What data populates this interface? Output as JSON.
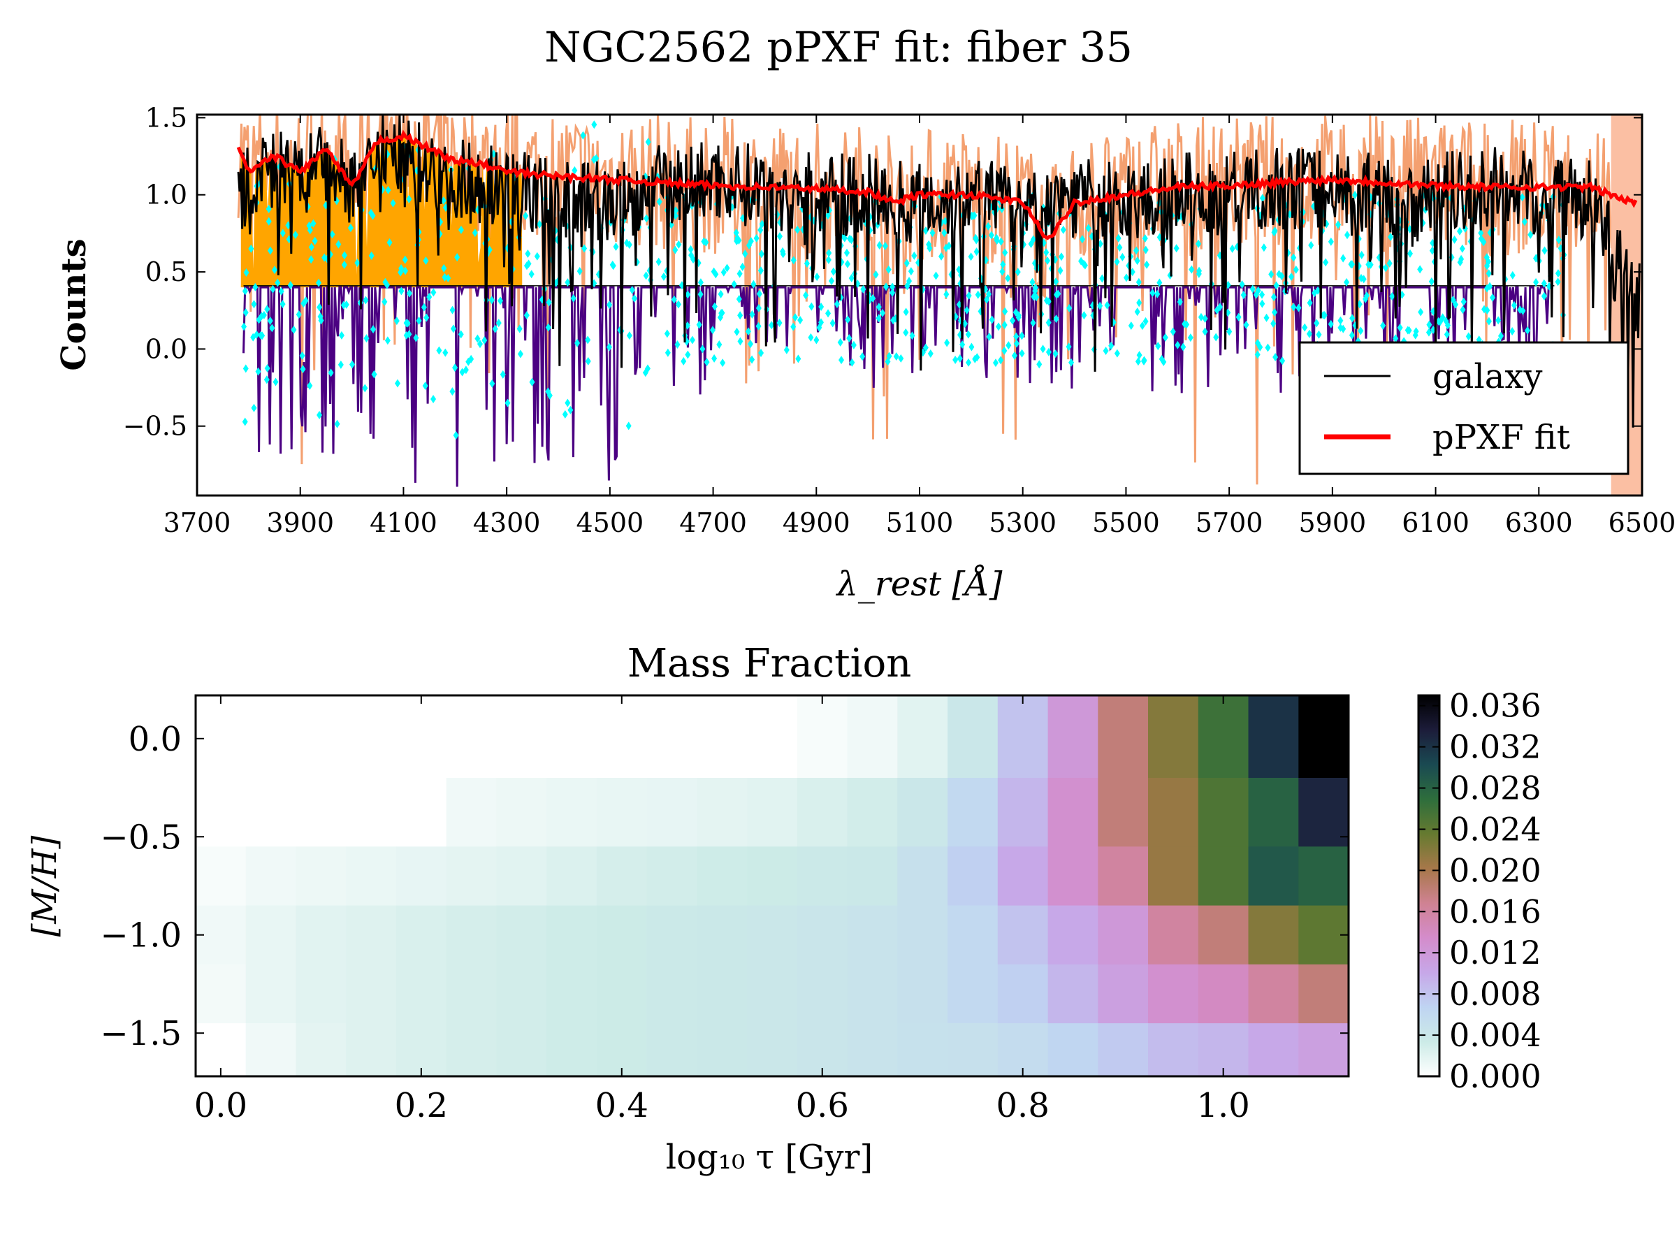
{
  "figure": {
    "title": "NGC2562 pPXF fit: fiber 35"
  },
  "chart_data": [
    {
      "type": "line",
      "xlabel": "λ_rest [Å]",
      "ylabel": "Counts",
      "xlim": [
        3700,
        6500
      ],
      "ylim": [
        -0.95,
        1.52
      ],
      "x_ticks": [
        {
          "label": "3700",
          "value": 3700
        },
        {
          "label": "3900",
          "value": 3900
        },
        {
          "label": "4100",
          "value": 4100
        },
        {
          "label": "4300",
          "value": 4300
        },
        {
          "label": "4500",
          "value": 4500
        },
        {
          "label": "4700",
          "value": 4700
        },
        {
          "label": "4900",
          "value": 4900
        },
        {
          "label": "5100",
          "value": 5100
        },
        {
          "label": "5300",
          "value": 5300
        },
        {
          "label": "5500",
          "value": 5500
        },
        {
          "label": "5700",
          "value": 5700
        },
        {
          "label": "5900",
          "value": 5900
        },
        {
          "label": "6100",
          "value": 6100
        },
        {
          "label": "6300",
          "value": 6300
        },
        {
          "label": "6500",
          "value": 6500
        }
      ],
      "y_ticks": [
        {
          "label": "−0.5",
          "value": -0.5
        },
        {
          "label": "0.0",
          "value": 0.0
        },
        {
          "label": "0.5",
          "value": 0.5
        },
        {
          "label": "1.0",
          "value": 1.0
        },
        {
          "label": "1.5",
          "value": 1.5
        }
      ],
      "legend": {
        "placement": "lower-right",
        "entries": [
          "galaxy",
          "pPXF fit"
        ]
      },
      "series": [
        {
          "name": "galaxy",
          "color": "#000000",
          "x": [
            3780,
            3800,
            3850,
            3900,
            3950,
            4000,
            4050,
            4100,
            4150,
            4200,
            4300,
            4400,
            4500,
            4600,
            4700,
            4800,
            4900,
            5000,
            5100,
            5200,
            5300,
            5400,
            5500,
            5600,
            5700,
            5800,
            5900,
            6000,
            6100,
            6200,
            6300,
            6400,
            6480
          ],
          "y": [
            1.0,
            1.1,
            1.15,
            1.1,
            1.2,
            1.05,
            1.3,
            1.25,
            1.2,
            1.1,
            1.05,
            1.0,
            0.95,
            1.05,
            1.1,
            1.05,
            1.0,
            1.0,
            0.95,
            1.0,
            0.9,
            1.0,
            0.95,
            1.0,
            1.0,
            1.05,
            1.05,
            1.0,
            1.0,
            1.05,
            1.0,
            1.0,
            0.3
          ]
        },
        {
          "name": "pPXF fit",
          "color": "#ff0000",
          "x": [
            3780,
            3800,
            3850,
            3900,
            3950,
            4000,
            4050,
            4100,
            4150,
            4200,
            4250,
            4300,
            4400,
            4500,
            4600,
            4700,
            4800,
            4900,
            5000,
            5050,
            5100,
            5200,
            5300,
            5350,
            5400,
            5500,
            5600,
            5700,
            5800,
            5900,
            6000,
            6100,
            6200,
            6300,
            6400,
            6480
          ],
          "y": [
            1.3,
            1.15,
            1.25,
            1.15,
            1.3,
            1.05,
            1.35,
            1.38,
            1.3,
            1.22,
            1.2,
            1.15,
            1.12,
            1.1,
            1.08,
            1.06,
            1.05,
            1.04,
            1.02,
            0.95,
            1.0,
            1.0,
            0.95,
            0.7,
            0.95,
            1.0,
            1.05,
            1.06,
            1.08,
            1.1,
            1.08,
            1.06,
            1.05,
            1.05,
            1.05,
            0.95
          ]
        }
      ]
    },
    {
      "type": "heatmap",
      "title": "Mass Fraction",
      "xlabel": "log₁₀ τ [Gyr]",
      "ylabel": "[M/H]",
      "x_values": [
        0.0,
        0.05,
        0.1,
        0.15,
        0.2,
        0.25,
        0.3,
        0.35,
        0.4,
        0.45,
        0.5,
        0.55,
        0.6,
        0.65,
        0.7,
        0.75,
        0.8,
        0.85,
        0.9,
        0.95,
        1.0,
        1.05,
        1.1
      ],
      "y_values": [
        0.0,
        -0.4,
        -0.7,
        -1.0,
        -1.3,
        -1.6
      ],
      "xlim": [
        -0.025,
        1.125
      ],
      "ylim": [
        -1.72,
        0.22
      ],
      "x_ticks": [
        {
          "label": "0.0",
          "value": 0.0
        },
        {
          "label": "0.2",
          "value": 0.2
        },
        {
          "label": "0.4",
          "value": 0.4
        },
        {
          "label": "0.6",
          "value": 0.6
        },
        {
          "label": "0.8",
          "value": 0.8
        },
        {
          "label": "1.0",
          "value": 1.0
        }
      ],
      "y_ticks": [
        {
          "label": "0.0",
          "value": 0.0
        },
        {
          "label": "−0.5",
          "value": -0.5
        },
        {
          "label": "−1.0",
          "value": -1.0
        },
        {
          "label": "−1.5",
          "value": -1.5
        }
      ],
      "z": [
        [
          0,
          0,
          0,
          0,
          0,
          0,
          0,
          0,
          0,
          0,
          0,
          0,
          0.0005,
          0.001,
          0.002,
          0.004,
          0.008,
          0.012,
          0.018,
          0.022,
          0.026,
          0.032,
          0.037
        ],
        [
          0,
          0,
          0,
          0,
          0,
          0.001,
          0.0012,
          0.0014,
          0.0015,
          0.0016,
          0.0018,
          0.002,
          0.0025,
          0.003,
          0.004,
          0.006,
          0.009,
          0.013,
          0.018,
          0.021,
          0.025,
          0.028,
          0.033
        ],
        [
          0.0005,
          0.001,
          0.0012,
          0.0014,
          0.0016,
          0.0018,
          0.002,
          0.0024,
          0.0028,
          0.003,
          0.0032,
          0.0034,
          0.0036,
          0.0038,
          0.005,
          0.007,
          0.01,
          0.013,
          0.016,
          0.021,
          0.025,
          0.029,
          0.028
        ],
        [
          0.001,
          0.0015,
          0.002,
          0.0022,
          0.0025,
          0.0028,
          0.003,
          0.0032,
          0.0034,
          0.0036,
          0.0038,
          0.004,
          0.0042,
          0.0045,
          0.005,
          0.006,
          0.008,
          0.01,
          0.012,
          0.016,
          0.018,
          0.022,
          0.024
        ],
        [
          0.0008,
          0.0015,
          0.002,
          0.0022,
          0.0025,
          0.0028,
          0.003,
          0.0032,
          0.0034,
          0.0036,
          0.0038,
          0.004,
          0.0042,
          0.0045,
          0.005,
          0.006,
          0.007,
          0.009,
          0.011,
          0.013,
          0.014,
          0.016,
          0.018
        ],
        [
          0,
          0.001,
          0.0018,
          0.0022,
          0.0025,
          0.0028,
          0.003,
          0.0032,
          0.0034,
          0.0036,
          0.0038,
          0.004,
          0.0042,
          0.0045,
          0.0048,
          0.005,
          0.0055,
          0.0065,
          0.0075,
          0.0085,
          0.009,
          0.01,
          0.011
        ]
      ],
      "colorbar": {
        "ticks": [
          "0.000",
          "0.004",
          "0.008",
          "0.012",
          "0.016",
          "0.020",
          "0.024",
          "0.028",
          "0.032",
          "0.036"
        ],
        "range": [
          0,
          0.037
        ],
        "colors": [
          "#ffffff",
          "#ccebe7",
          "#bfd4f2",
          "#c7a7e8",
          "#d48ccb",
          "#cf8292",
          "#a7784a",
          "#667a30",
          "#2e6e3c",
          "#1a4a52",
          "#1c1c3a",
          "#000000"
        ]
      }
    }
  ]
}
